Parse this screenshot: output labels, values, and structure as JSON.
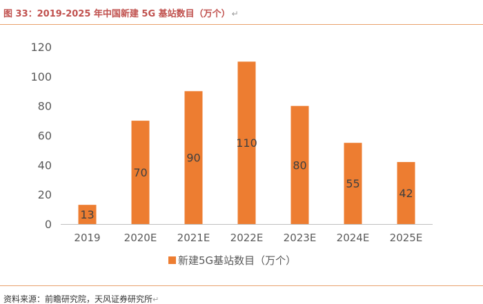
{
  "figure": {
    "title": "图 33：2019-2025 年中国新建 5G 基站数目（万个）",
    "source": "资料来源：前瞻研究院，天风证券研究所",
    "return_mark": "↵"
  },
  "colors": {
    "bar": "#ed7d31",
    "axis": "#bfbfbf",
    "text": "#595959",
    "accent_rule": "#e8a06a",
    "title": "#c0504d"
  },
  "chart_data": {
    "type": "bar",
    "title": "",
    "categories": [
      "2019",
      "2020E",
      "2021E",
      "2022E",
      "2023E",
      "2024E",
      "2025E"
    ],
    "series": [
      {
        "name": "新建5G基站数目（万个）",
        "values": [
          13,
          70,
          90,
          110,
          80,
          55,
          42
        ]
      }
    ],
    "data_labels": [
      "13",
      "70",
      "90",
      "110",
      "80",
      "55",
      "42"
    ],
    "y_ticks": [
      "0",
      "20",
      "40",
      "60",
      "80",
      "100",
      "120"
    ],
    "xlabel": "",
    "ylabel": "",
    "ylim": [
      0,
      120
    ],
    "grid": false,
    "legend_position": "bottom"
  }
}
